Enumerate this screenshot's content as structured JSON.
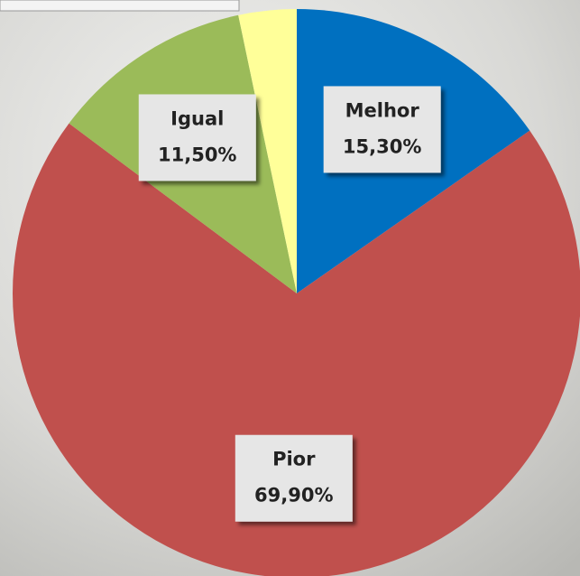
{
  "chart_data": {
    "type": "pie",
    "categories": [
      "Melhor",
      "Pior",
      "Igual",
      null
    ],
    "values": [
      15.3,
      69.9,
      11.5,
      3.3
    ],
    "value_labels": [
      "15,30%",
      "69,90%",
      "11,50%",
      null
    ],
    "colors": [
      "#0070c0",
      "#c0504d",
      "#9bbb59",
      "#ffff99"
    ],
    "start_angle": 0,
    "direction": "clockwise"
  }
}
